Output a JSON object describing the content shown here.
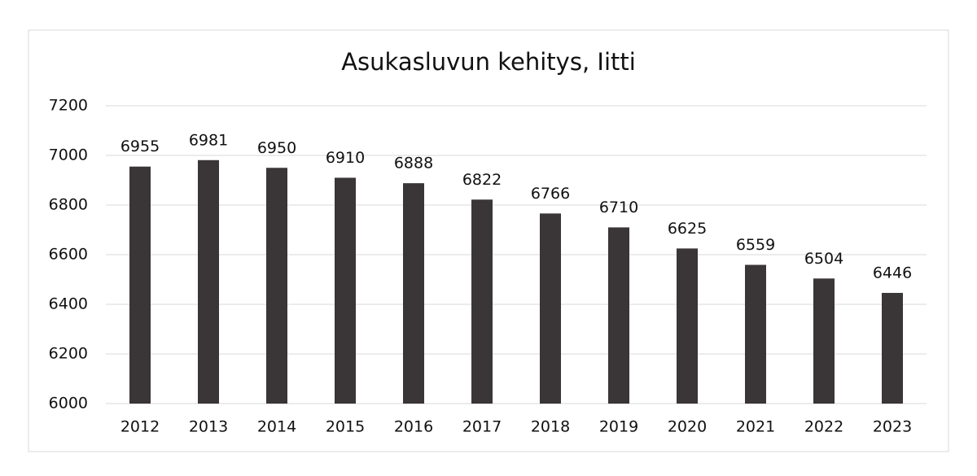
{
  "chart_data": {
    "type": "bar",
    "title": "Asukasluvun kehitys, Iitti",
    "categories": [
      "2012",
      "2013",
      "2014",
      "2015",
      "2016",
      "2017",
      "2018",
      "2019",
      "2020",
      "2021",
      "2022",
      "2023"
    ],
    "values": [
      6955,
      6981,
      6950,
      6910,
      6888,
      6822,
      6766,
      6710,
      6625,
      6559,
      6504,
      6446
    ],
    "color": "#3a3537",
    "ylim": [
      6000,
      7200
    ],
    "yticks": [
      6000,
      6200,
      6400,
      6600,
      6800,
      7000,
      7200
    ],
    "grid": true,
    "data_labels": true
  }
}
